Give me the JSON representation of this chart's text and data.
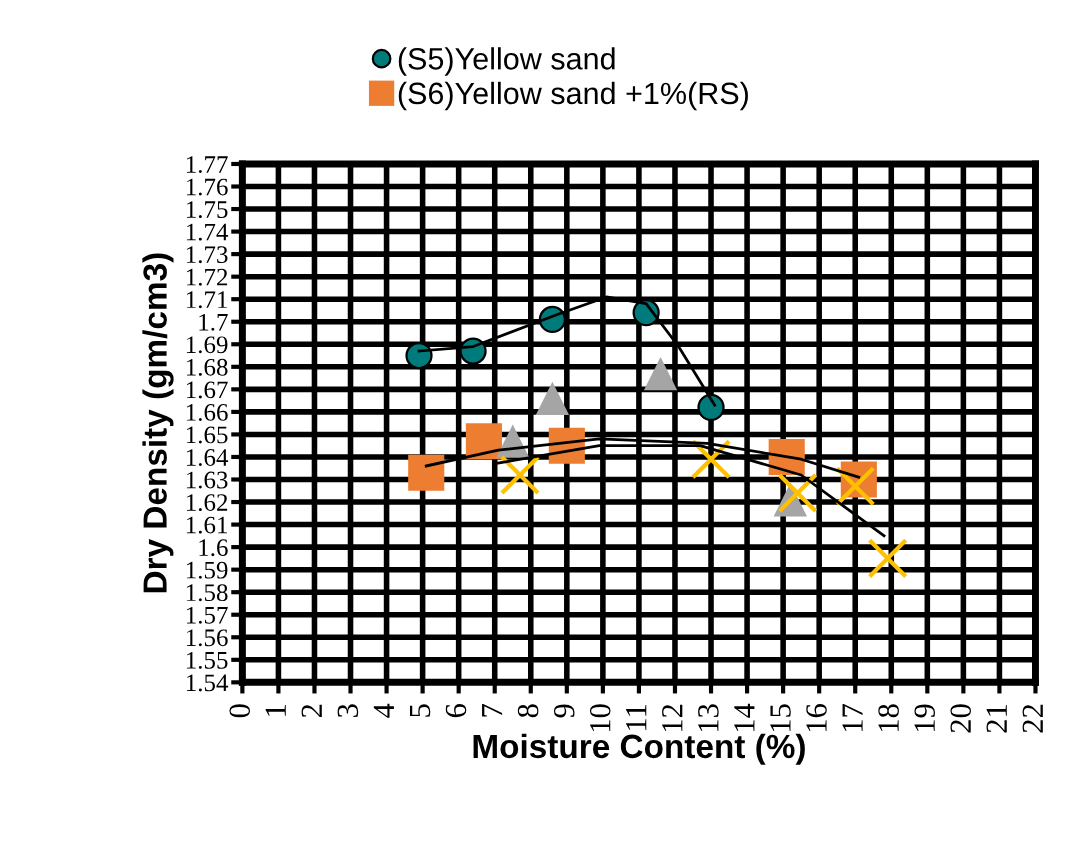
{
  "chart_data": {
    "type": "scatter",
    "xlabel": "Moisture Content (%)",
    "ylabel": "Dry Density (gm/cm3)",
    "xlim": [
      0,
      22
    ],
    "xticks": [
      0,
      1,
      2,
      3,
      4,
      5,
      6,
      7,
      8,
      9,
      10,
      11,
      12,
      13,
      14,
      15,
      16,
      17,
      18,
      19,
      20,
      21,
      22
    ],
    "ylim": [
      1.54,
      1.77
    ],
    "yticks": [
      1.54,
      1.55,
      1.56,
      1.57,
      1.58,
      1.59,
      1.6,
      1.61,
      1.62,
      1.63,
      1.64,
      1.65,
      1.66,
      1.67,
      1.68,
      1.69,
      1.7,
      1.71,
      1.72,
      1.73,
      1.74,
      1.75,
      1.76,
      1.77
    ],
    "grid": true,
    "legend": "top",
    "series": [
      {
        "name": "(S5)Yellow sand",
        "color": "#007b7b",
        "marker": "circle",
        "x": [
          4.9,
          6.4,
          8.6,
          11.2,
          13.0
        ],
        "values": [
          1.685,
          1.687,
          1.701,
          1.704,
          1.662
        ]
      },
      {
        "name": "(S6)Yellow sand +1%(RS)",
        "color": "#ed7d31",
        "marker": "square",
        "x": [
          5.1,
          6.7,
          9.0,
          15.1,
          17.1
        ],
        "values": [
          1.633,
          1.647,
          1.645,
          1.64,
          1.63
        ]
      },
      {
        "color": "#a5a5a5",
        "marker": "triangle",
        "x": [
          7.5,
          8.6,
          11.6,
          15.2
        ],
        "values": [
          1.647,
          1.666,
          1.677,
          1.621
        ]
      },
      {
        "color": "#ffc000",
        "marker": "cross",
        "x": [
          7.7,
          13.0,
          15.4,
          17.0,
          17.9
        ],
        "values": [
          1.632,
          1.639,
          1.624,
          1.627,
          1.595
        ]
      },
      {
        "type": "line",
        "color": "#000000",
        "x": [
          4.9,
          6.4,
          8.7,
          10.1,
          11.2,
          12.1,
          13.1
        ],
        "values": [
          1.687,
          1.689,
          1.703,
          1.711,
          1.708,
          1.689,
          1.663
        ]
      },
      {
        "type": "line",
        "color": "#000000",
        "x": [
          5.1,
          7.1,
          9.9,
          12.9,
          15.5,
          17.1
        ],
        "values": [
          1.636,
          1.643,
          1.648,
          1.646,
          1.639,
          1.631
        ]
      },
      {
        "type": "line",
        "color": "#000000",
        "x": [
          7.0,
          9.9,
          12.7,
          15.5,
          17.8
        ],
        "values": [
          1.637,
          1.645,
          1.645,
          1.632,
          1.605
        ]
      }
    ]
  }
}
